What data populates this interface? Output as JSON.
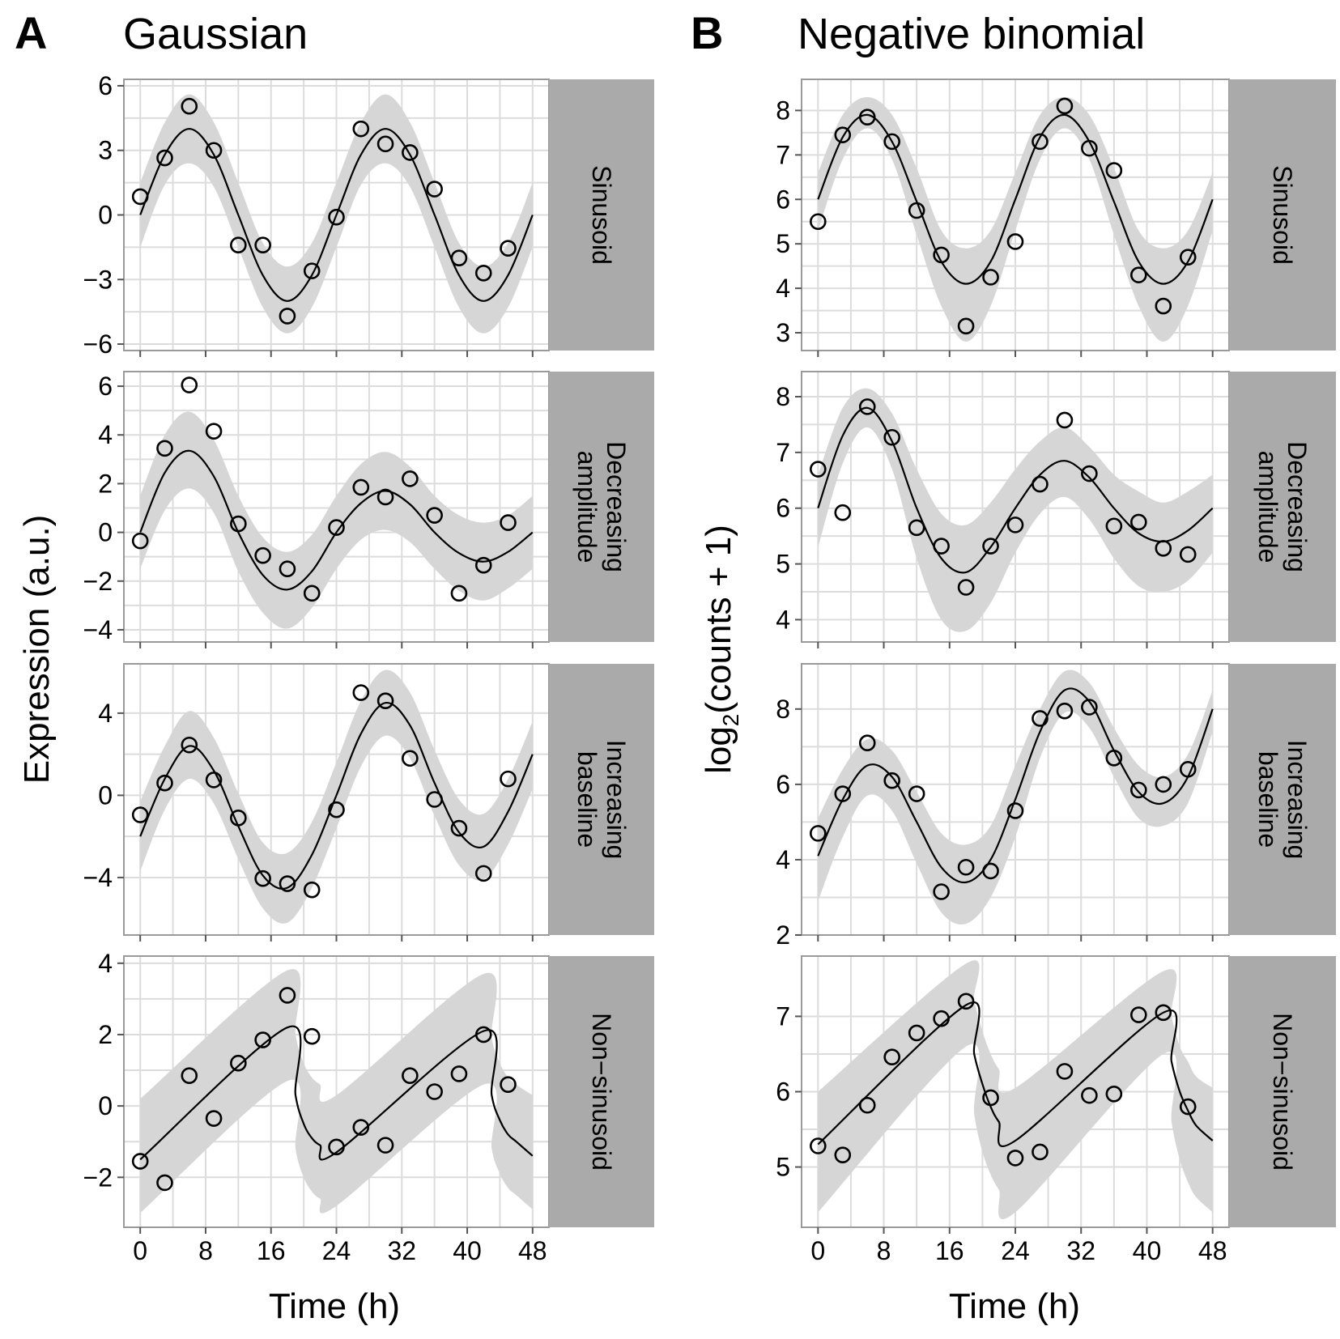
{
  "figure": {
    "columns": [
      {
        "letter": "A",
        "title": "Gaussian",
        "ylabel": "Expression (a.u.)"
      },
      {
        "letter": "B",
        "title": "Negative binomial",
        "ylabel_main": "log",
        "ylabel_sub": "2",
        "ylabel_rest": "(counts + 1)"
      }
    ],
    "xlabel": "Time (h)"
  },
  "chart_data": [
    {
      "type": "line",
      "column": "A",
      "facet": "Sinusoid",
      "facet_lines": [
        "Sinusoid"
      ],
      "xlim": [
        -2,
        50
      ],
      "ylim": [
        -6.3,
        6.3
      ],
      "yticks": [
        -6,
        -3,
        0,
        3,
        6
      ],
      "xticks": [
        0,
        8,
        16,
        24,
        32,
        40,
        48
      ],
      "points": {
        "x": [
          0,
          3,
          6,
          9,
          12,
          15,
          18,
          21,
          24,
          27,
          30,
          33,
          36,
          39,
          42,
          45
        ],
        "y": [
          0.85,
          2.65,
          5.05,
          3.0,
          -1.4,
          -1.4,
          -4.7,
          -2.6,
          -0.1,
          4.0,
          3.3,
          2.9,
          1.2,
          -2.0,
          -2.7,
          -1.55
        ]
      },
      "fit": {
        "x": [
          0,
          3,
          6,
          9,
          12,
          15,
          18,
          21,
          24,
          27,
          30,
          33,
          36,
          39,
          42,
          45,
          48
        ],
        "y": [
          0,
          2.8,
          4,
          2.8,
          0,
          -2.8,
          -4,
          -2.8,
          0,
          2.8,
          4,
          2.8,
          0,
          -2.8,
          -4,
          -2.8,
          0
        ],
        "lower": [
          -1.5,
          1.4,
          2.4,
          1.3,
          -1.5,
          -4.3,
          -5.5,
          -4.3,
          -1.5,
          1.4,
          2.4,
          1.3,
          -1.5,
          -4.3,
          -5.5,
          -4.3,
          -1.5
        ],
        "upper": [
          1.5,
          4.3,
          5.6,
          4.3,
          1.5,
          -1.3,
          -2.4,
          -1.3,
          1.5,
          4.3,
          5.6,
          4.3,
          1.5,
          -1.3,
          -2.4,
          -1.3,
          1.5
        ]
      }
    },
    {
      "type": "line",
      "column": "A",
      "facet": "Decreasing amplitude",
      "facet_lines": [
        "Decreasing",
        "amplitude"
      ],
      "xlim": [
        -2,
        50
      ],
      "ylim": [
        -4.5,
        6.6
      ],
      "yticks": [
        -4,
        -2,
        0,
        2,
        4,
        6
      ],
      "xticks": [
        0,
        8,
        16,
        24,
        32,
        40,
        48
      ],
      "points": {
        "x": [
          0,
          3,
          6,
          9,
          12,
          15,
          18,
          21,
          24,
          27,
          30,
          33,
          36,
          39,
          42,
          45
        ],
        "y": [
          -0.35,
          3.45,
          6.05,
          4.15,
          0.35,
          -0.95,
          -1.5,
          -2.5,
          0.2,
          1.85,
          1.45,
          2.2,
          0.7,
          -2.5,
          -1.35,
          0.4
        ]
      },
      "fit": {
        "x": [
          0,
          3,
          6,
          9,
          12,
          15,
          18,
          21,
          24,
          27,
          30,
          33,
          36,
          39,
          42,
          45,
          48
        ],
        "y": [
          0,
          2.45,
          3.35,
          2.3,
          0,
          -1.75,
          -2.35,
          -1.6,
          0,
          1.2,
          1.7,
          1.15,
          0,
          -0.85,
          -1.2,
          -0.8,
          0
        ],
        "lower": [
          -1.5,
          0.9,
          1.8,
          0.8,
          -1.6,
          -3.3,
          -3.95,
          -3.1,
          -1.5,
          -0.3,
          0.1,
          -0.4,
          -1.5,
          -2.4,
          -2.8,
          -2.3,
          -1.5
        ],
        "upper": [
          1.5,
          4.0,
          4.95,
          3.8,
          1.5,
          -0.2,
          -0.8,
          -0.1,
          1.5,
          2.8,
          3.3,
          2.7,
          1.5,
          0.7,
          0.4,
          0.7,
          1.5
        ]
      }
    },
    {
      "type": "line",
      "column": "A",
      "facet": "Increasing baseline",
      "facet_lines": [
        "Increasing",
        "baseline"
      ],
      "xlim": [
        -2,
        50
      ],
      "ylim": [
        -6.8,
        6.4
      ],
      "yticks": [
        -4,
        0,
        4
      ],
      "xticks": [
        0,
        8,
        16,
        24,
        32,
        40,
        48
      ],
      "points": {
        "x": [
          0,
          3,
          6,
          9,
          12,
          15,
          18,
          21,
          24,
          27,
          30,
          33,
          36,
          39,
          42,
          45
        ],
        "y": [
          -0.95,
          0.6,
          2.45,
          0.75,
          -1.1,
          -4.05,
          -4.3,
          -4.6,
          -0.7,
          5.0,
          4.6,
          1.8,
          -0.2,
          -1.6,
          -3.8,
          0.8
        ]
      },
      "fit": {
        "x": [
          0,
          3,
          6,
          9,
          12,
          15,
          18,
          21,
          24,
          27,
          30,
          33,
          36,
          39,
          42,
          45,
          48
        ],
        "y": [
          -2,
          0.8,
          2.4,
          1.2,
          -1.5,
          -3.9,
          -4.5,
          -2.9,
          0,
          3,
          4.5,
          3.4,
          0.6,
          -1.8,
          -2.5,
          -0.8,
          2
        ],
        "lower": [
          -3.7,
          -0.7,
          0.8,
          -0.4,
          -3.1,
          -5.5,
          -6.2,
          -4.5,
          -1.6,
          1.4,
          2.9,
          1.8,
          -1.0,
          -3.4,
          -4.1,
          -2.4,
          0.3
        ],
        "upper": [
          -0.3,
          2.4,
          4.1,
          2.8,
          0.1,
          -2.3,
          -2.8,
          -1.3,
          1.6,
          4.6,
          6.1,
          5.0,
          2.2,
          -0.2,
          -0.9,
          0.8,
          3.6
        ]
      }
    },
    {
      "type": "line",
      "column": "A",
      "facet": "Non−sinusoid",
      "facet_lines": [
        "Non−sinusoid"
      ],
      "xlim": [
        -2,
        50
      ],
      "ylim": [
        -3.4,
        4.2
      ],
      "yticks": [
        -2,
        0,
        2,
        4
      ],
      "xticks": [
        0,
        8,
        16,
        24,
        32,
        40,
        48
      ],
      "points": {
        "x": [
          0,
          3,
          6,
          9,
          12,
          15,
          18,
          21,
          24,
          27,
          30,
          33,
          36,
          39,
          42,
          45
        ],
        "y": [
          -1.55,
          -2.15,
          0.85,
          -0.35,
          1.2,
          1.85,
          3.1,
          1.95,
          -1.15,
          -0.6,
          -1.1,
          0.85,
          0.4,
          0.9,
          2.0,
          0.6
        ]
      },
      "fit": {
        "x": [
          0,
          18,
          19,
          20,
          21,
          22,
          24,
          42,
          43,
          44,
          45,
          46,
          48
        ],
        "y": [
          -1.5,
          2.2,
          0.3,
          -0.5,
          -0.9,
          -1.1,
          -1.3,
          2.1,
          0.3,
          -0.4,
          -0.8,
          -1.0,
          -1.4
        ],
        "lower": [
          -3.0,
          0.7,
          -1.2,
          -2.0,
          -2.4,
          -2.6,
          -2.8,
          0.6,
          -1.2,
          -1.9,
          -2.3,
          -2.5,
          -2.9
        ],
        "upper": [
          0.2,
          3.8,
          2.0,
          1.2,
          0.8,
          0.6,
          0.3,
          3.7,
          1.9,
          1.2,
          0.8,
          0.6,
          0.3
        ]
      }
    },
    {
      "type": "line",
      "column": "B",
      "facet": "Sinusoid",
      "facet_lines": [
        "Sinusoid"
      ],
      "xlim": [
        -2,
        50
      ],
      "ylim": [
        2.6,
        8.7
      ],
      "yticks": [
        3,
        4,
        5,
        6,
        7,
        8
      ],
      "xticks": [
        0,
        8,
        16,
        24,
        32,
        40,
        48
      ],
      "points": {
        "x": [
          0,
          3,
          6,
          9,
          12,
          15,
          18,
          21,
          24,
          27,
          30,
          33,
          36,
          39,
          42,
          45
        ],
        "y": [
          5.5,
          7.45,
          7.85,
          7.3,
          5.75,
          4.75,
          3.15,
          4.25,
          5.05,
          7.3,
          8.1,
          7.15,
          6.65,
          4.3,
          3.6,
          4.7
        ]
      },
      "fit": {
        "x": [
          0,
          3,
          6,
          9,
          12,
          15,
          18,
          21,
          24,
          27,
          30,
          33,
          36,
          39,
          42,
          45,
          48
        ],
        "y": [
          6,
          7.4,
          7.9,
          7.3,
          5.95,
          4.6,
          4.1,
          4.6,
          6,
          7.4,
          7.9,
          7.3,
          5.95,
          4.6,
          4.1,
          4.6,
          6
        ],
        "lower": [
          5.3,
          6.9,
          7.6,
          6.9,
          5.2,
          3.6,
          2.8,
          3.6,
          5.3,
          6.9,
          7.6,
          6.9,
          5.2,
          3.6,
          2.8,
          3.6,
          5.3
        ],
        "upper": [
          6.6,
          7.9,
          8.3,
          7.9,
          6.7,
          5.3,
          4.9,
          5.3,
          6.6,
          7.9,
          8.3,
          7.9,
          6.7,
          5.3,
          4.9,
          5.3,
          6.6
        ]
      }
    },
    {
      "type": "line",
      "column": "B",
      "facet": "Decreasing amplitude",
      "facet_lines": [
        "Decreasing",
        "amplitude"
      ],
      "xlim": [
        -2,
        50
      ],
      "ylim": [
        3.6,
        8.45
      ],
      "yticks": [
        4,
        5,
        6,
        7,
        8
      ],
      "xticks": [
        0,
        8,
        16,
        24,
        32,
        40,
        48
      ],
      "points": {
        "x": [
          0,
          3,
          6,
          9,
          12,
          15,
          18,
          21,
          24,
          27,
          30,
          33,
          36,
          39,
          42,
          45
        ],
        "y": [
          6.7,
          5.92,
          7.82,
          7.27,
          5.65,
          5.32,
          4.58,
          5.32,
          5.7,
          6.43,
          7.58,
          6.62,
          5.68,
          5.75,
          5.28,
          5.17
        ]
      },
      "fit": {
        "x": [
          0,
          3,
          6,
          9,
          12,
          15,
          18,
          21,
          24,
          27,
          30,
          33,
          36,
          39,
          42,
          45,
          48
        ],
        "y": [
          6,
          7.3,
          7.8,
          7.2,
          6,
          5.1,
          4.85,
          5.3,
          6,
          6.6,
          6.85,
          6.55,
          6,
          5.55,
          5.4,
          5.6,
          6
        ],
        "lower": [
          5.3,
          6.8,
          7.45,
          6.7,
          5.1,
          4.0,
          3.8,
          4.3,
          5.2,
          5.9,
          6.2,
          5.8,
          5.1,
          4.6,
          4.5,
          4.7,
          5.2
        ],
        "upper": [
          6.6,
          7.8,
          8.15,
          7.7,
          6.7,
          5.9,
          5.7,
          6.1,
          6.7,
          7.2,
          7.45,
          7.1,
          6.6,
          6.3,
          6.1,
          6.3,
          6.6
        ]
      }
    },
    {
      "type": "line",
      "column": "B",
      "facet": "Increasing baseline",
      "facet_lines": [
        "Increasing",
        "baseline"
      ],
      "xlim": [
        -2,
        50
      ],
      "ylim": [
        2.0,
        9.2
      ],
      "yticks": [
        2,
        4,
        6,
        8
      ],
      "xticks": [
        0,
        8,
        16,
        24,
        32,
        40,
        48
      ],
      "points": {
        "x": [
          0,
          3,
          6,
          9,
          12,
          15,
          18,
          21,
          24,
          27,
          30,
          33,
          36,
          39,
          42,
          45
        ],
        "y": [
          4.7,
          5.75,
          7.1,
          6.1,
          5.75,
          3.15,
          3.8,
          3.7,
          5.3,
          7.75,
          7.95,
          8.05,
          6.7,
          5.85,
          6.0,
          6.4
        ]
      },
      "fit": {
        "x": [
          0,
          3,
          6,
          9,
          12,
          15,
          18,
          21,
          24,
          27,
          30,
          33,
          36,
          39,
          42,
          45,
          48
        ],
        "y": [
          4.1,
          5.6,
          6.5,
          6.2,
          5.0,
          3.8,
          3.4,
          4.0,
          5.6,
          7.4,
          8.5,
          8.2,
          6.9,
          5.8,
          5.5,
          6.2,
          8.0
        ],
        "lower": [
          2.9,
          4.6,
          5.7,
          5.3,
          3.9,
          2.6,
          2.3,
          3.0,
          4.6,
          6.7,
          7.9,
          7.5,
          6.2,
          5.1,
          4.9,
          5.5,
          7.4
        ],
        "upper": [
          5.1,
          6.4,
          7.2,
          6.9,
          5.8,
          4.7,
          4.4,
          4.9,
          6.5,
          8.0,
          9.0,
          8.7,
          7.5,
          6.5,
          6.2,
          6.8,
          8.5
        ]
      }
    },
    {
      "type": "line",
      "column": "B",
      "facet": "Non−sinusoid",
      "facet_lines": [
        "Non−sinusoid"
      ],
      "xlim": [
        -2,
        50
      ],
      "ylim": [
        4.2,
        7.8
      ],
      "yticks": [
        5,
        6,
        7
      ],
      "xticks": [
        0,
        8,
        16,
        24,
        32,
        40,
        48
      ],
      "points": {
        "x": [
          0,
          3,
          6,
          9,
          12,
          15,
          18,
          21,
          24,
          27,
          30,
          33,
          36,
          39,
          42,
          45
        ],
        "y": [
          5.28,
          5.16,
          5.82,
          6.46,
          6.78,
          6.97,
          7.2,
          5.92,
          5.12,
          5.2,
          6.27,
          5.95,
          5.97,
          7.02,
          7.05,
          5.8
        ]
      },
      "fit": {
        "x": [
          0,
          18,
          19,
          20,
          21,
          22,
          24,
          42,
          43,
          44,
          45,
          46,
          48
        ],
        "y": [
          5.3,
          7.15,
          6.5,
          6.1,
          5.8,
          5.6,
          5.35,
          7.05,
          6.4,
          6.0,
          5.75,
          5.55,
          5.35
        ],
        "lower": [
          4.4,
          6.6,
          5.7,
          5.2,
          4.9,
          4.7,
          4.4,
          6.5,
          5.6,
          5.1,
          4.8,
          4.6,
          4.4
        ],
        "upper": [
          6.0,
          7.7,
          7.2,
          6.8,
          6.5,
          6.3,
          6.05,
          7.6,
          7.0,
          6.6,
          6.4,
          6.2,
          6.05
        ]
      }
    }
  ]
}
